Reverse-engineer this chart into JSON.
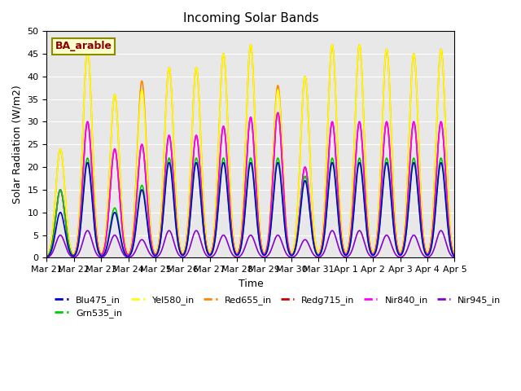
{
  "title": "Incoming Solar Bands",
  "xlabel": "Time",
  "ylabel": "Solar Radiation (W/m2)",
  "annotation": "BA_arable",
  "ylim": [
    0,
    50
  ],
  "n_days": 15,
  "xtick_labels": [
    "Mar 21",
    "Mar 22",
    "Mar 23",
    "Mar 24",
    "Mar 25",
    "Mar 26",
    "Mar 27",
    "Mar 28",
    "Mar 29",
    "Mar 30",
    "Mar 31",
    "Apr 1",
    "Apr 2",
    "Apr 3",
    "Apr 4",
    "Apr 5"
  ],
  "bg_color": "#e8e8e8",
  "series_order": [
    "Red655_in",
    "Yel580_in",
    "Redg715_in",
    "Nir840_in",
    "Grn535_in",
    "Blu475_in",
    "Nir945_in"
  ],
  "series": {
    "Blu475_in": {
      "color": "#0000cc",
      "lw": 1.2
    },
    "Grn535_in": {
      "color": "#00cc00",
      "lw": 1.2
    },
    "Yel580_in": {
      "color": "#ffff00",
      "lw": 1.2
    },
    "Red655_in": {
      "color": "#ff8800",
      "lw": 1.2
    },
    "Redg715_in": {
      "color": "#cc0000",
      "lw": 1.2
    },
    "Nir840_in": {
      "color": "#ff00ff",
      "lw": 1.2
    },
    "Nir945_in": {
      "color": "#8800cc",
      "lw": 1.2
    }
  },
  "day_peaks": {
    "Blu475_in": [
      10,
      21,
      10,
      15,
      21,
      21,
      21,
      21,
      21,
      17,
      21,
      21,
      21,
      21,
      21
    ],
    "Grn535_in": [
      15,
      22,
      11,
      16,
      22,
      22,
      22,
      22,
      22,
      18,
      22,
      22,
      22,
      22,
      22
    ],
    "Yel580_in": [
      24,
      46,
      36,
      37,
      42,
      42,
      45,
      47,
      37,
      40,
      47,
      47,
      46,
      45,
      46
    ],
    "Red655_in": [
      24,
      46,
      36,
      39,
      42,
      42,
      45,
      47,
      38,
      40,
      47,
      47,
      46,
      45,
      46
    ],
    "Redg715_in": [
      15,
      30,
      24,
      25,
      27,
      27,
      29,
      31,
      32,
      20,
      30,
      30,
      30,
      30,
      30
    ],
    "Nir840_in": [
      15,
      30,
      24,
      25,
      27,
      27,
      29,
      31,
      32,
      20,
      30,
      30,
      30,
      30,
      30
    ],
    "Nir945_in": [
      5,
      6,
      5,
      4,
      6,
      6,
      5,
      5,
      5,
      4,
      6,
      6,
      5,
      5,
      6
    ]
  },
  "legend_labels": [
    "Blu475_in",
    "Grn535_in",
    "Yel580_in",
    "Red655_in",
    "Redg715_in",
    "Nir840_in",
    "Nir945_in"
  ],
  "legend_colors": [
    "#0000cc",
    "#00cc00",
    "#ffff00",
    "#ff8800",
    "#cc0000",
    "#ff00ff",
    "#8800cc"
  ]
}
